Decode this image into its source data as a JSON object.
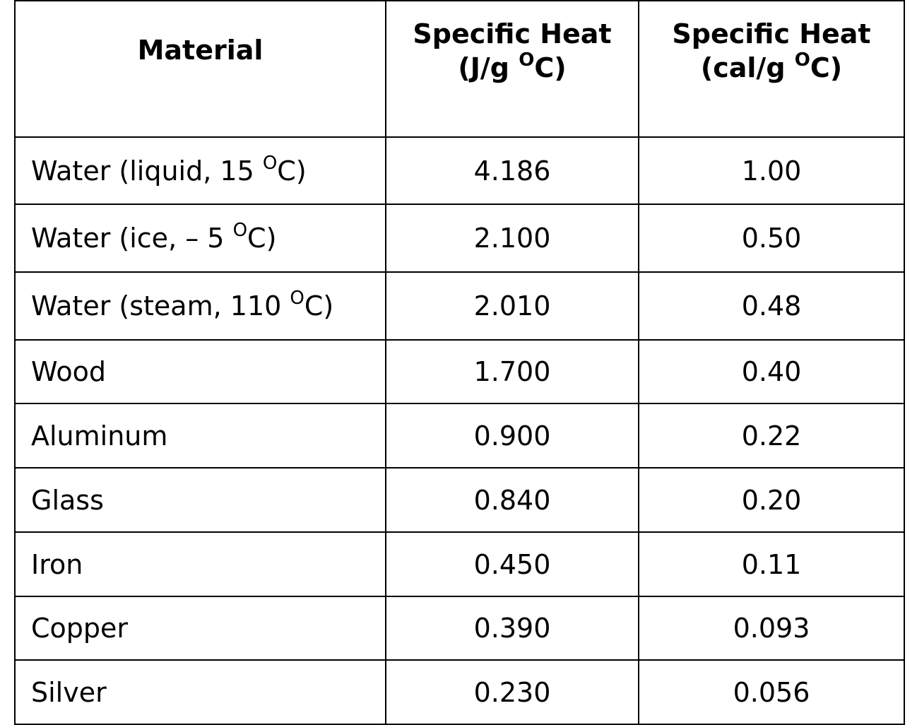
{
  "table": {
    "header": [
      {
        "line1": "Material"
      },
      {
        "line1": "Specific Heat",
        "line2": "(J/g ",
        "sup": "O",
        "after": "C)"
      },
      {
        "line1": "Specific Heat",
        "line2": "(cal/g ",
        "sup": "O",
        "after": "C)"
      }
    ],
    "rows": [
      [
        {
          "text": "Water (liquid, 15 ",
          "sup": "O",
          "after": "C)"
        },
        "4.186",
        "1.00"
      ],
      [
        {
          "text": "Water (ice, – 5 ",
          "sup": "O",
          "after": "C)"
        },
        "2.100",
        "0.50"
      ],
      [
        {
          "text": "Water (steam, 110 ",
          "sup": "O",
          "after": "C)"
        },
        "2.010",
        "0.48"
      ],
      [
        {
          "text": "Wood"
        },
        "1.700",
        "0.40"
      ],
      [
        {
          "text": "Aluminum"
        },
        "0.900",
        "0.22"
      ],
      [
        {
          "text": "Glass"
        },
        "0.840",
        "0.20"
      ],
      [
        {
          "text": "Iron"
        },
        "0.450",
        "0.11"
      ],
      [
        {
          "text": "Copper"
        },
        "0.390",
        "0.093"
      ],
      [
        {
          "text": "Silver"
        },
        "0.230",
        "0.056"
      ]
    ]
  }
}
